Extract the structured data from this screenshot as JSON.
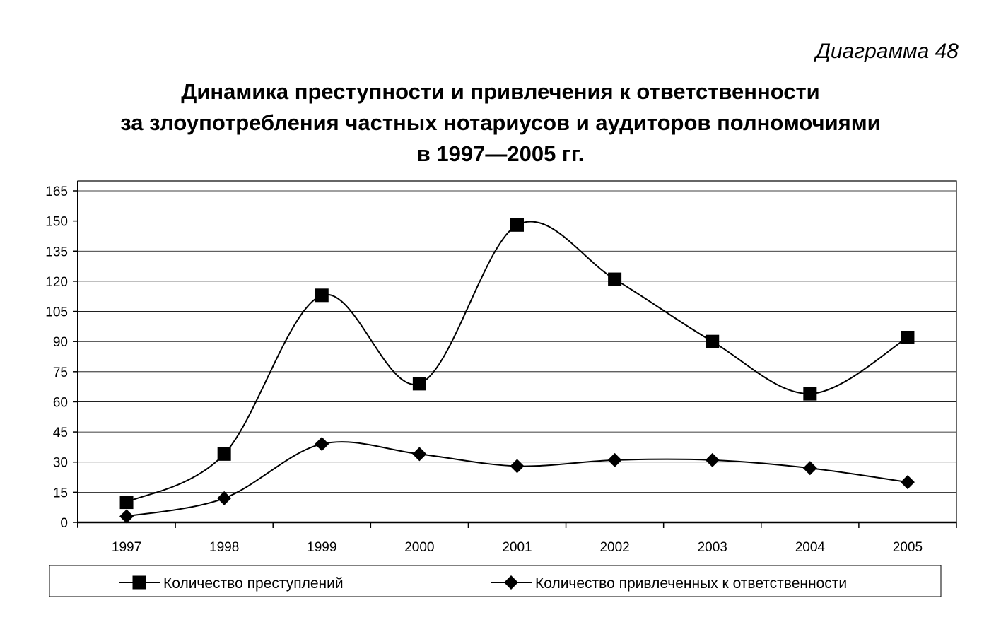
{
  "figure_label": "Диаграмма 48",
  "chart_data": {
    "type": "line",
    "title": [
      "Динамика преступности и привлечения к ответственности",
      "за злоупотребления частных нотариусов и аудиторов полномочиями",
      "в 1997—2005 гг."
    ],
    "xlabel": "",
    "ylabel": "",
    "categories": [
      "1997",
      "1998",
      "1999",
      "2000",
      "2001",
      "2002",
      "2003",
      "2004",
      "2005"
    ],
    "ylim": [
      0,
      165
    ],
    "yticks": [
      0,
      15,
      30,
      45,
      60,
      75,
      90,
      105,
      120,
      135,
      150,
      165
    ],
    "grid": true,
    "legend_placement": "bottom",
    "series": [
      {
        "name": "Количество преступлений",
        "marker": "square",
        "color": "#000000",
        "values": [
          10,
          34,
          113,
          69,
          148,
          121,
          90,
          64,
          92
        ]
      },
      {
        "name": "Количество привлеченных к ответственности",
        "marker": "diamond",
        "color": "#000000",
        "values": [
          3,
          12,
          39,
          34,
          28,
          31,
          31,
          27,
          20
        ]
      }
    ]
  }
}
